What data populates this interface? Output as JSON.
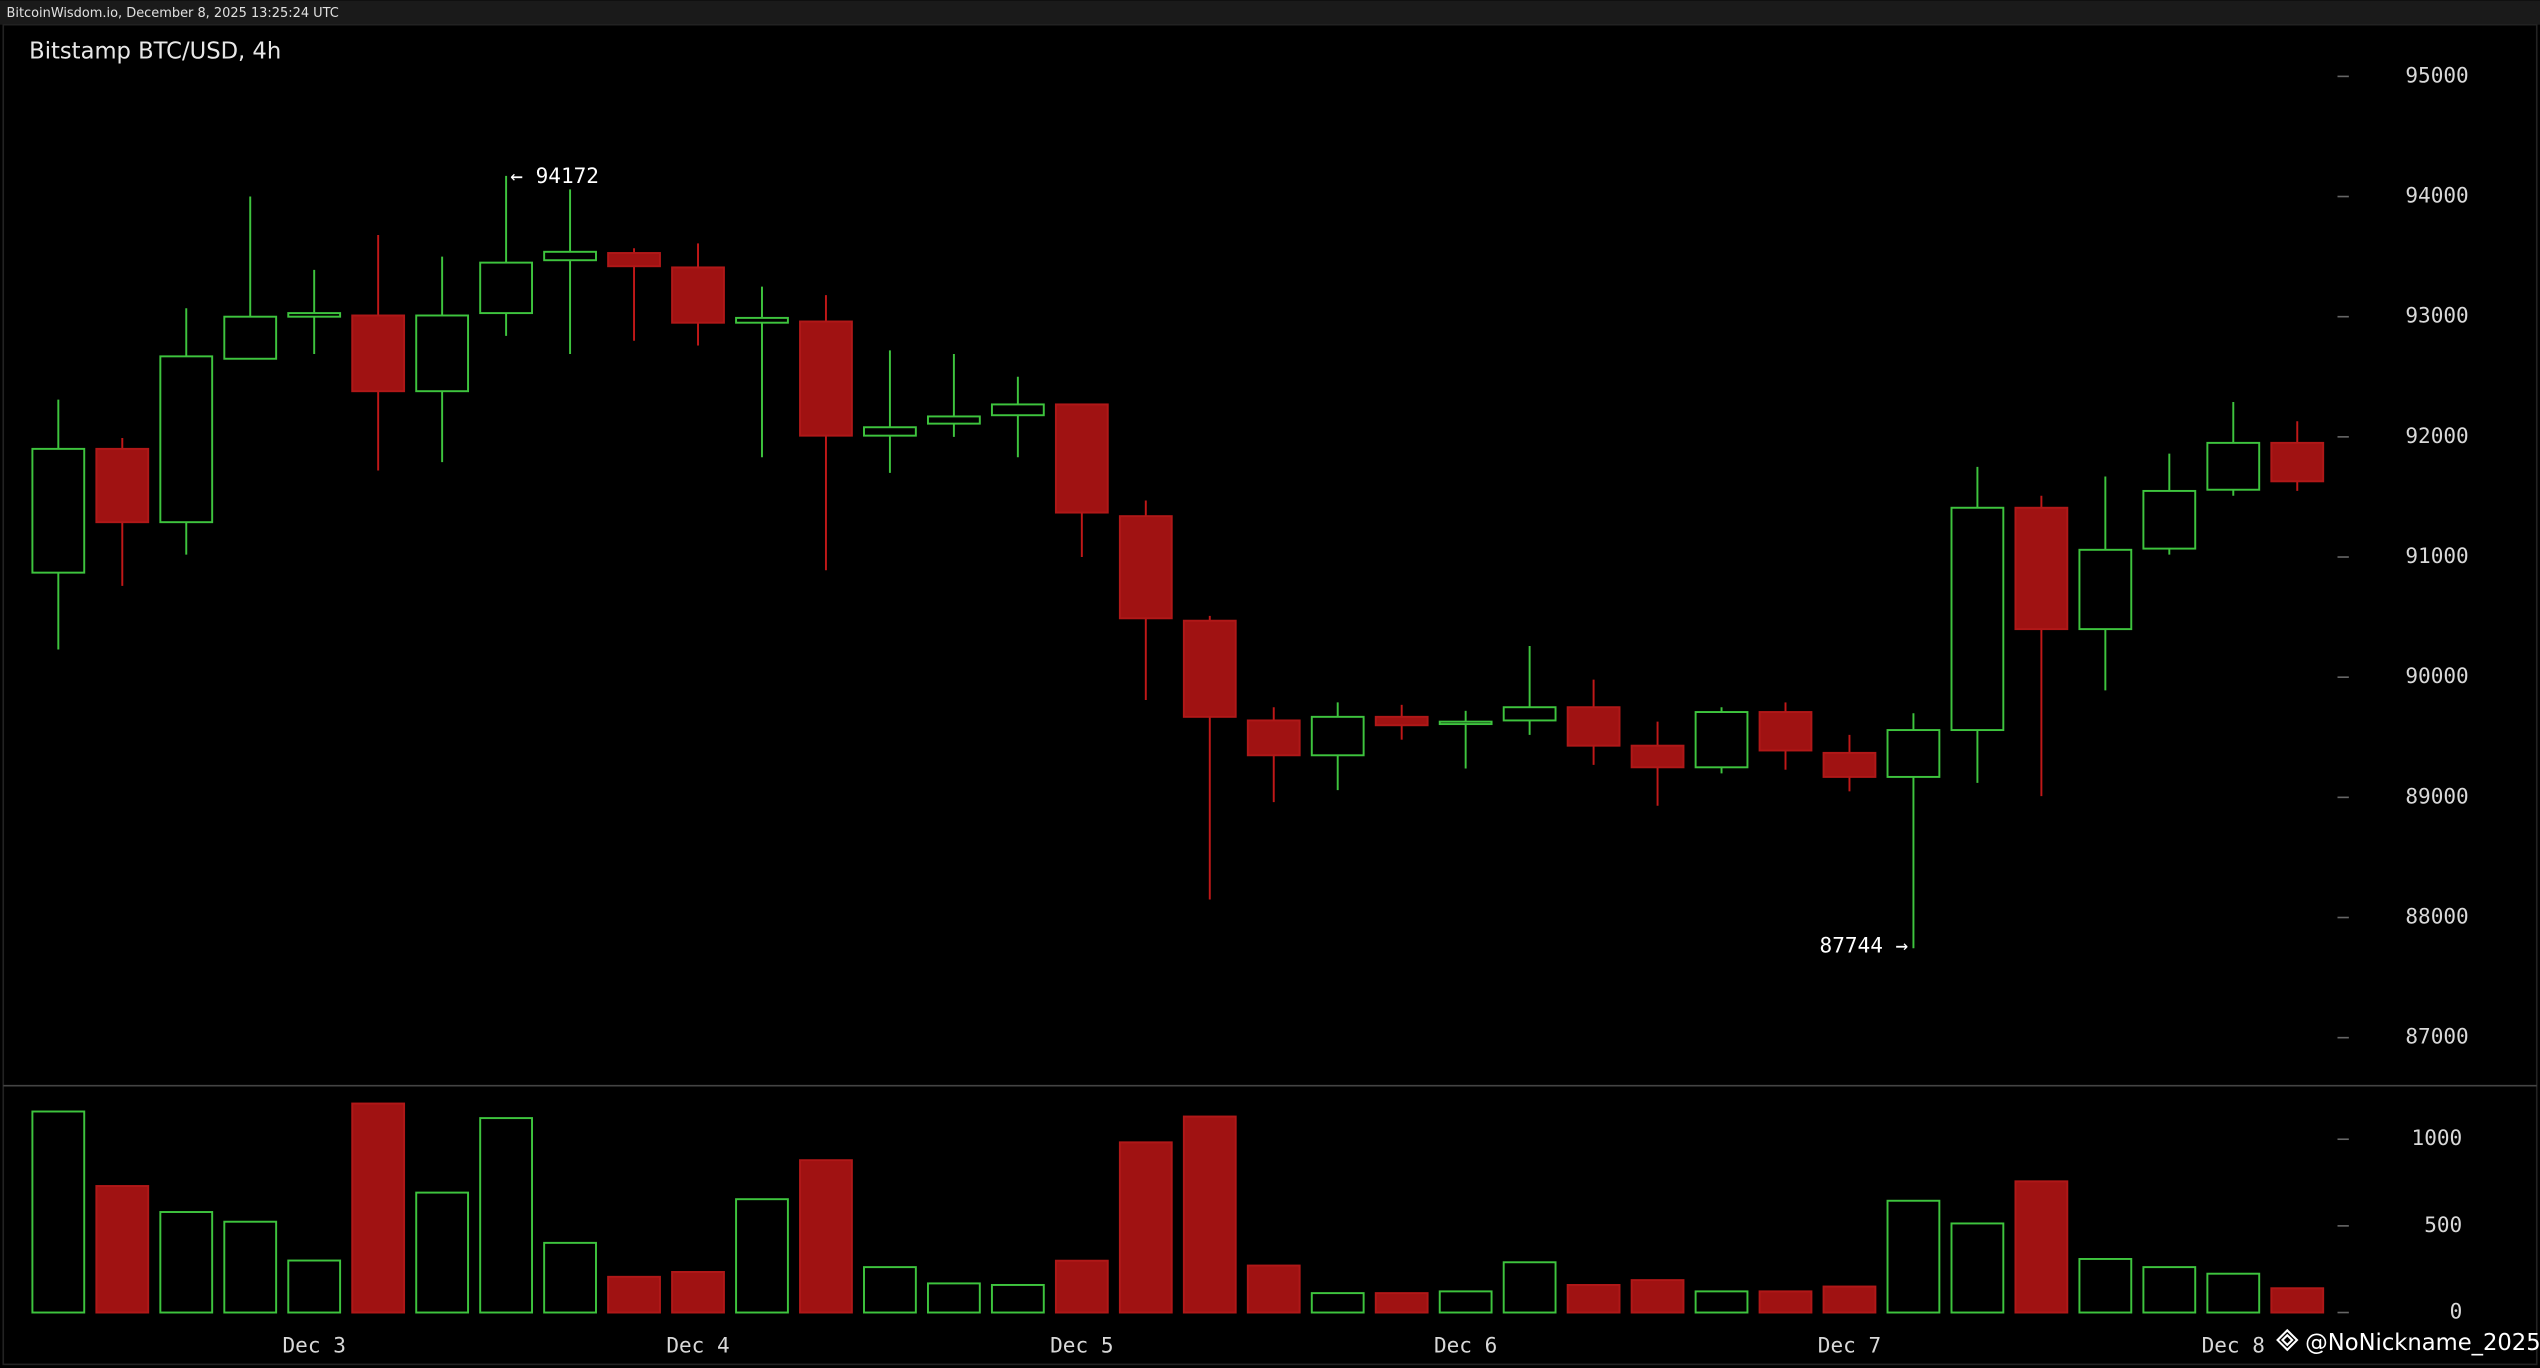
{
  "header": "BitcoinWisdom.io, December 8, 2025 13:25:24 UTC",
  "watermark": "@NoNickname_2025",
  "chart_data": {
    "type": "candlestick",
    "title": "Bitstamp BTC/USD, 4h",
    "categories": [
      null,
      null,
      null,
      null,
      "Dec 3",
      null,
      null,
      null,
      null,
      null,
      "Dec 4",
      null,
      null,
      null,
      null,
      null,
      "Dec 5",
      null,
      null,
      null,
      null,
      null,
      "Dec 6",
      null,
      null,
      null,
      null,
      null,
      "Dec 7",
      null,
      null,
      null,
      null,
      null,
      "Dec 8",
      null
    ],
    "open": [
      90870,
      91900,
      91290,
      92650,
      93000,
      93010,
      92380,
      93030,
      93470,
      93530,
      93410,
      92950,
      92960,
      92010,
      92110,
      92180,
      92270,
      91340,
      90470,
      89640,
      89350,
      89670,
      89620,
      89640,
      89750,
      89430,
      89250,
      89710,
      89370,
      89170,
      89560,
      91410,
      90400,
      91070,
      91560,
      91950
    ],
    "high": [
      92310,
      91990,
      93070,
      94000,
      93390,
      93680,
      93500,
      94172,
      94060,
      93570,
      93610,
      93250,
      93180,
      92720,
      92690,
      92500,
      92270,
      91470,
      90510,
      89750,
      89790,
      89770,
      89720,
      90260,
      89980,
      89630,
      89750,
      89790,
      89520,
      89700,
      91750,
      91510,
      91670,
      91860,
      92290,
      92130
    ],
    "low": [
      90230,
      90760,
      91020,
      92650,
      92690,
      91720,
      91790,
      92840,
      92690,
      92800,
      92760,
      91830,
      90890,
      91700,
      92000,
      91830,
      91000,
      89810,
      88150,
      88960,
      89060,
      89480,
      89240,
      89520,
      89270,
      88930,
      89200,
      89230,
      89050,
      87744,
      89120,
      89010,
      89890,
      91020,
      91510,
      91550
    ],
    "close": [
      91900,
      91290,
      92670,
      93000,
      93030,
      92380,
      93010,
      93450,
      93540,
      93420,
      92950,
      92990,
      92010,
      92080,
      92170,
      92270,
      91370,
      90490,
      89670,
      89350,
      89670,
      89600,
      89630,
      89750,
      89430,
      89250,
      89710,
      89390,
      89170,
      89560,
      91410,
      90400,
      91060,
      91550,
      91950,
      91630
    ],
    "up_color": "#3ec43e",
    "down_color": "#a01212",
    "ylim": [
      86600,
      95430
    ],
    "yticks": [
      87000,
      88000,
      89000,
      90000,
      91000,
      92000,
      93000,
      94000,
      95000
    ],
    "annotations": [
      "← 94172",
      "87744 →"
    ],
    "volume": {
      "values": [
        1160,
        730,
        580,
        524,
        300,
        1206,
        692,
        1122,
        402,
        206,
        234,
        654,
        879,
        262,
        168,
        159,
        299,
        982,
        1131,
        271,
        112,
        112,
        122,
        290,
        159,
        187,
        122,
        122,
        150,
        645,
        514,
        757,
        309,
        262,
        224,
        140
      ],
      "ylim": [
        0,
        1290
      ],
      "yticks": [
        0,
        500,
        1000
      ]
    }
  }
}
